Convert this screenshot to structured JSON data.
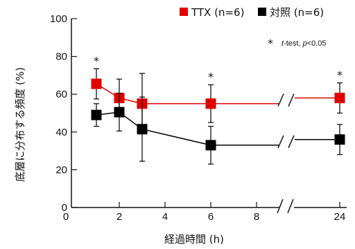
{
  "chart_data": {
    "type": "line",
    "ylabel": "底層に分布する頻度 (%)",
    "xlabel": "経過時間 (h)",
    "ylim": [
      0,
      100
    ],
    "yticks": [
      0,
      20,
      40,
      60,
      80,
      100
    ],
    "xticks": [
      2,
      4,
      6,
      8,
      24
    ],
    "x_axis_break": "between 8 and 24",
    "legend_position": "top-right",
    "series": [
      {
        "name": "TTX (n=6)",
        "color": "#e00000",
        "marker": "square",
        "points": [
          {
            "x": 1,
            "y": 65.5,
            "err": 8,
            "star": true
          },
          {
            "x": 2,
            "y": 58,
            "err": 10,
            "star": false
          },
          {
            "x": 3,
            "y": 55,
            "err": 16,
            "star": false
          },
          {
            "x": 6,
            "y": 55,
            "err": 10,
            "star": true
          },
          {
            "x": 24,
            "y": 58,
            "err": 8,
            "star": true
          }
        ]
      },
      {
        "name": "対照 (n=6)",
        "color": "#000000",
        "marker": "square",
        "points": [
          {
            "x": 1,
            "y": 49,
            "err": 6
          },
          {
            "x": 2,
            "y": 50.5,
            "err": 10
          },
          {
            "x": 3,
            "y": 41.5,
            "err": 17
          },
          {
            "x": 6,
            "y": 33,
            "err": 10
          },
          {
            "x": 24,
            "y": 36,
            "err": 8
          }
        ]
      }
    ],
    "star_symbol": "*",
    "annotation": {
      "prefix": "t",
      "text": "-test, ",
      "p": "p",
      "rest": "<0.05"
    }
  }
}
